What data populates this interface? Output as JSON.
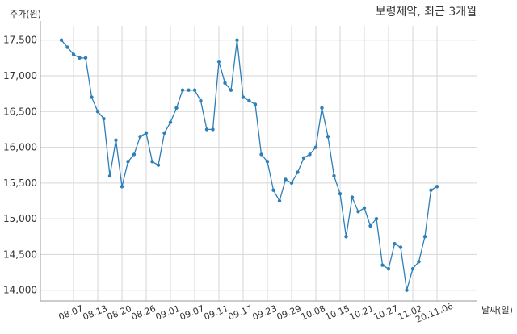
{
  "chart_data": {
    "type": "line",
    "title": "보령제약, 최근 3개월",
    "ylabel": "주가(원)",
    "xlabel": "날짜(일)",
    "ylim": [
      13850,
      17700
    ],
    "yticks": [
      14000,
      14500,
      15000,
      15500,
      16000,
      16500,
      17000,
      17500
    ],
    "ytick_labels": [
      "14,000",
      "14,500",
      "15,000",
      "15,500",
      "16,000",
      "16,500",
      "17,000",
      "17,500"
    ],
    "xtick_labels": [
      "08.07",
      "08.13",
      "08.20",
      "08.26",
      "09.01",
      "09.07",
      "09.11",
      "09.17",
      "09.23",
      "09.29",
      "10.08",
      "10.15",
      "10.21",
      "10.27",
      "11.02",
      "20.11.06"
    ],
    "xtick_positions": [
      2,
      6,
      10,
      14,
      18,
      22,
      26,
      30,
      34,
      38,
      42,
      46,
      50,
      54,
      58,
      62
    ],
    "grid": true,
    "line_color": "#2d7fb8",
    "series": [
      {
        "values": [
          17500,
          17400,
          17300,
          17250,
          17250,
          16700,
          16500,
          16400,
          15600,
          16100,
          15450,
          15800,
          15900,
          16150,
          16200,
          15800,
          15750,
          16200,
          16350,
          16550,
          16800,
          16800,
          16800,
          16650,
          16250,
          16250,
          17200,
          16900,
          16800,
          17500,
          16700,
          16650,
          16600,
          15900,
          15800,
          15400,
          15250,
          15550,
          15500,
          15650,
          15850,
          15900,
          16000,
          16550,
          16150,
          15600,
          15350,
          14750,
          15300,
          15100,
          15150,
          14900,
          15000,
          14350,
          14300,
          14650,
          14600,
          14000,
          14300,
          14400,
          14750,
          15400,
          15450
        ]
      }
    ]
  }
}
